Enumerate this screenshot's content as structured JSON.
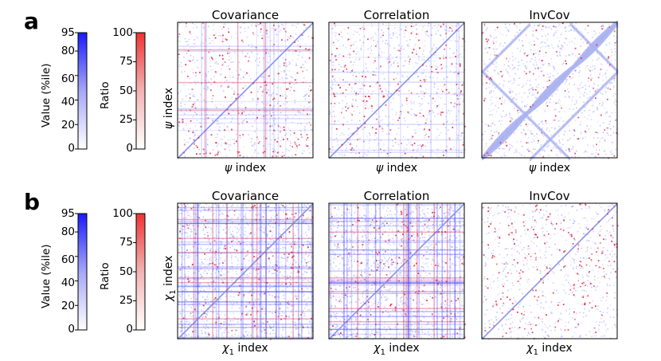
{
  "panels": [
    {
      "letter": "a",
      "colorbars": {
        "value": {
          "label": "Value (%ile)",
          "ticks": [
            "0",
            "20",
            "40",
            "60",
            "80",
            "95"
          ],
          "color_top": "#1a1aff"
        },
        "ratio": {
          "label": "Ratio",
          "ticks": [
            "0",
            "25",
            "50",
            "75",
            "100"
          ],
          "color_top": "#ee3333"
        }
      },
      "ylabel_var": "ψ",
      "ylabel_suffix": " index",
      "xlabel_var": "ψ",
      "xlabel_suffix": " index"
    },
    {
      "letter": "b",
      "colorbars": {
        "value": {
          "label": "Value (%ile)",
          "ticks": [
            "0",
            "20",
            "40",
            "60",
            "80",
            "95"
          ],
          "color_top": "#1a1aff"
        },
        "ratio": {
          "label": "Ratio",
          "ticks": [
            "0",
            "25",
            "50",
            "75",
            "100"
          ],
          "color_top": "#ee3333"
        }
      },
      "ylabel_var": "χ",
      "ylabel_sub": "1",
      "ylabel_suffix": " index",
      "xlabel_var": "χ",
      "xlabel_sub": "1",
      "xlabel_suffix": " index"
    }
  ],
  "chart_data": [
    {
      "type": "heatmap",
      "row": "a",
      "title": "Covariance",
      "xlabel": "ψ index",
      "ylabel": "ψ index",
      "pattern": "sparse-cov"
    },
    {
      "type": "heatmap",
      "row": "a",
      "title": "Correlation",
      "xlabel": "ψ index",
      "pattern": "sparse-corr"
    },
    {
      "type": "heatmap",
      "row": "a",
      "title": "InvCov",
      "xlabel": "ψ index",
      "pattern": "band-inv"
    },
    {
      "type": "heatmap",
      "row": "b",
      "title": "Covariance",
      "xlabel": "χ1 index",
      "ylabel": "χ1 index",
      "pattern": "dense-cov"
    },
    {
      "type": "heatmap",
      "row": "b",
      "title": "Correlation",
      "xlabel": "χ1 index",
      "pattern": "dense-corr"
    },
    {
      "type": "heatmap",
      "row": "b",
      "title": "InvCov",
      "xlabel": "χ1 index",
      "pattern": "sparse-inv"
    }
  ],
  "colors": {
    "blue": "#3b3bff",
    "red": "#e8283a",
    "lavender": "#a9b1f0"
  }
}
